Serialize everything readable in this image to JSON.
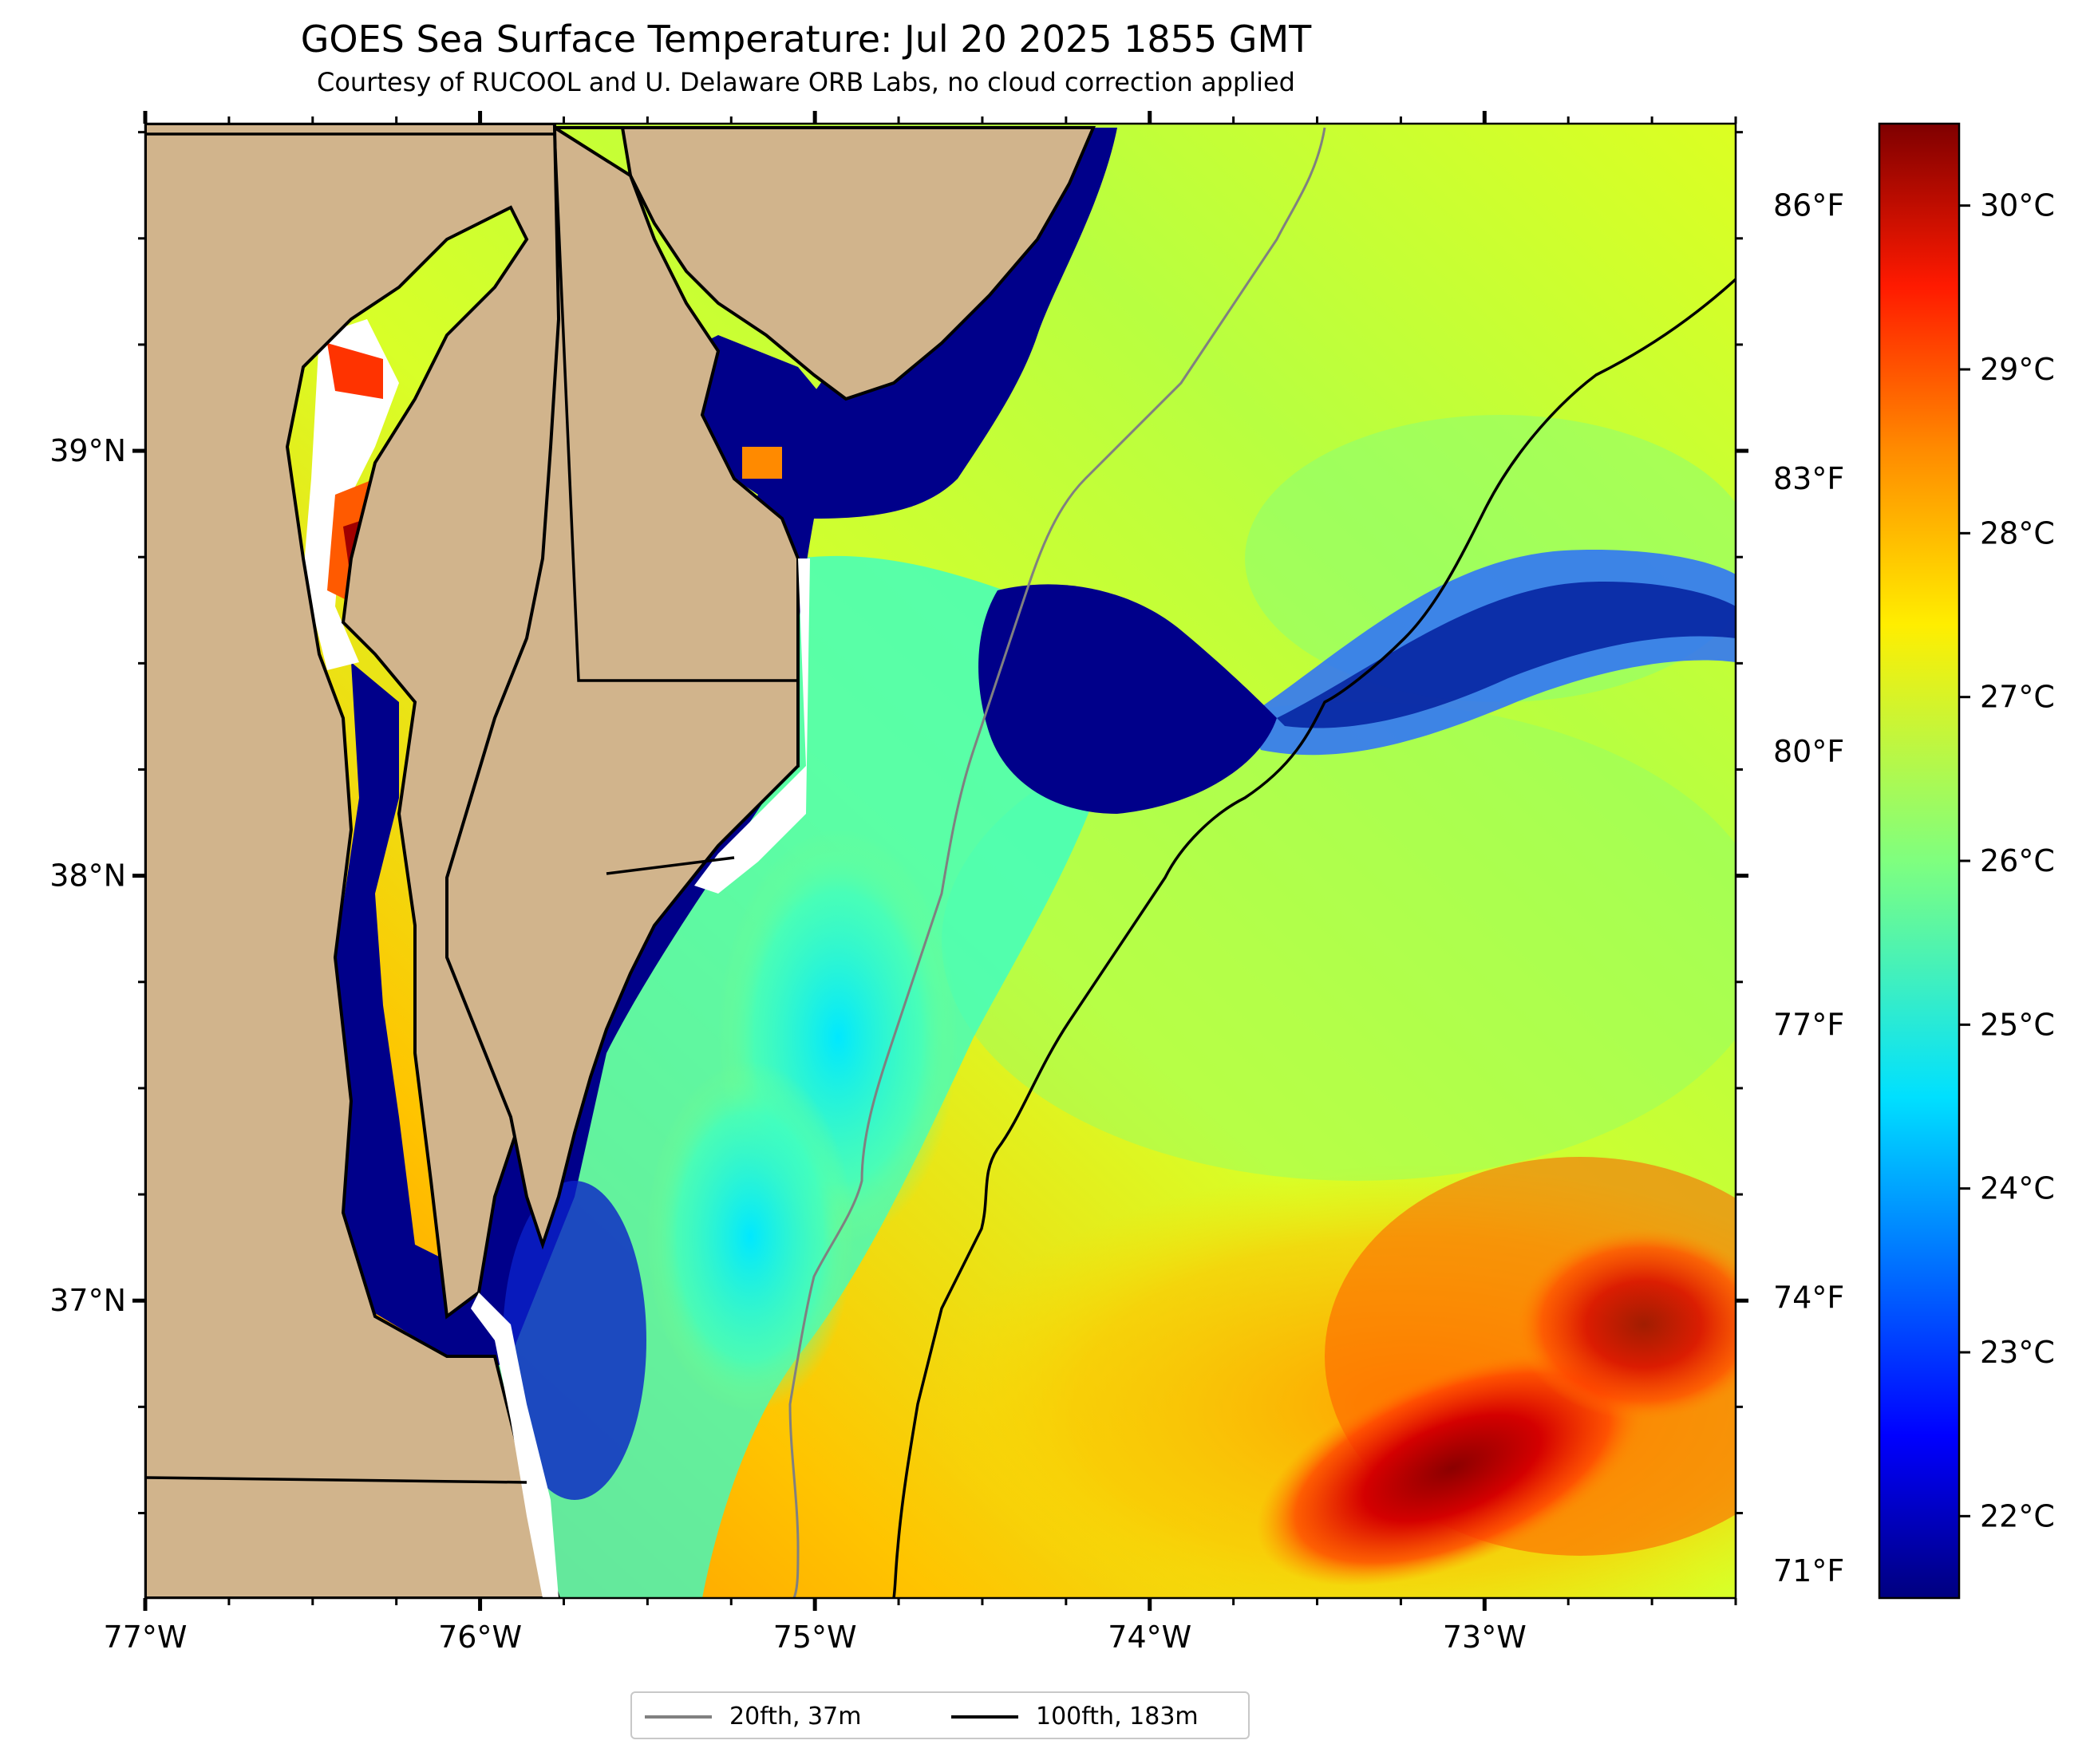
{
  "header": {
    "title": "GOES Sea Surface Temperature: Jul 20 2025 1855 GMT",
    "subtitle": "Courtesy of RUCOOL and U. Delaware ORB Labs, no cloud correction applied"
  },
  "map": {
    "lon_range": [
      -77.0,
      -72.25
    ],
    "lat_range": [
      36.3,
      39.77
    ],
    "lon_ticks": [
      {
        "value": -77,
        "label": "77°W"
      },
      {
        "value": -76,
        "label": "76°W"
      },
      {
        "value": -75,
        "label": "75°W"
      },
      {
        "value": -74,
        "label": "74°W"
      },
      {
        "value": -73,
        "label": "73°W"
      }
    ],
    "lat_ticks": [
      {
        "value": 39,
        "label": "39°N"
      },
      {
        "value": 38,
        "label": "38°N"
      },
      {
        "value": 37,
        "label": "37°N"
      }
    ],
    "land_color": "#d1b48c",
    "no_data_color": "#ffffff"
  },
  "colorbar": {
    "range_c": [
      21.5,
      30.5
    ],
    "celsius_ticks": [
      {
        "value": 22,
        "label": "22°C"
      },
      {
        "value": 23,
        "label": "23°C"
      },
      {
        "value": 24,
        "label": "24°C"
      },
      {
        "value": 25,
        "label": "25°C"
      },
      {
        "value": 26,
        "label": "26°C"
      },
      {
        "value": 27,
        "label": "27°C"
      },
      {
        "value": 28,
        "label": "28°C"
      },
      {
        "value": 29,
        "label": "29°C"
      },
      {
        "value": 30,
        "label": "30°C"
      }
    ],
    "fahrenheit_ticks": [
      {
        "value": 71,
        "label": "71°F"
      },
      {
        "value": 74,
        "label": "74°F"
      },
      {
        "value": 77,
        "label": "77°F"
      },
      {
        "value": 80,
        "label": "80°F"
      },
      {
        "value": 83,
        "label": "83°F"
      },
      {
        "value": 86,
        "label": "86°F"
      }
    ],
    "colormap": "jet"
  },
  "legend": {
    "items": [
      {
        "label": "20fth, 37m",
        "color": "#808080"
      },
      {
        "label": "100fth, 183m",
        "color": "#000000"
      }
    ]
  }
}
